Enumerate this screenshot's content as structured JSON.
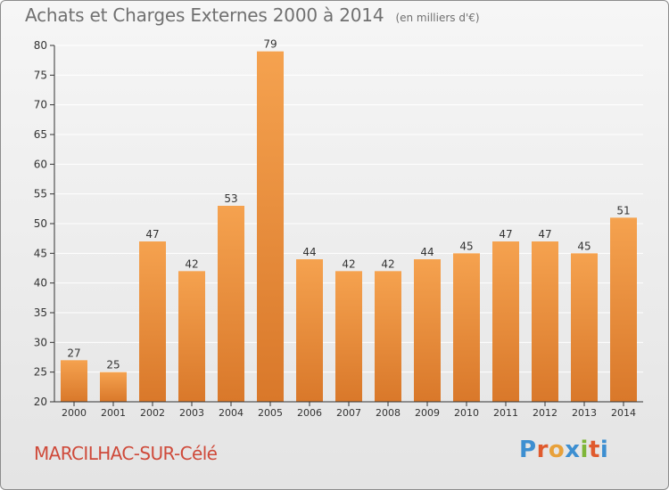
{
  "header": {
    "title": "Achats et Charges Externes 2000 à 2014",
    "unit": "(en milliers d'€)"
  },
  "footer": {
    "place": "MARCILHAC-SUR-Célé",
    "logo": "Proxiti"
  },
  "colors": {
    "bar_top": "#f5a24f",
    "bar_bottom": "#d9782a",
    "axis": "#333333",
    "grid": "#ffffff",
    "text": "#333333",
    "place": "#cf4a3a"
  },
  "chart_data": {
    "type": "bar",
    "categories": [
      "2000",
      "2001",
      "2002",
      "2003",
      "2004",
      "2005",
      "2006",
      "2007",
      "2008",
      "2009",
      "2010",
      "2011",
      "2012",
      "2013",
      "2014"
    ],
    "values": [
      27,
      25,
      47,
      42,
      53,
      79,
      44,
      42,
      42,
      44,
      45,
      47,
      47,
      45,
      51
    ],
    "ylim": [
      20,
      80
    ],
    "yticks": [
      20,
      25,
      30,
      35,
      40,
      45,
      50,
      55,
      60,
      65,
      70,
      75,
      80
    ],
    "grid": true,
    "data_labels": true
  }
}
